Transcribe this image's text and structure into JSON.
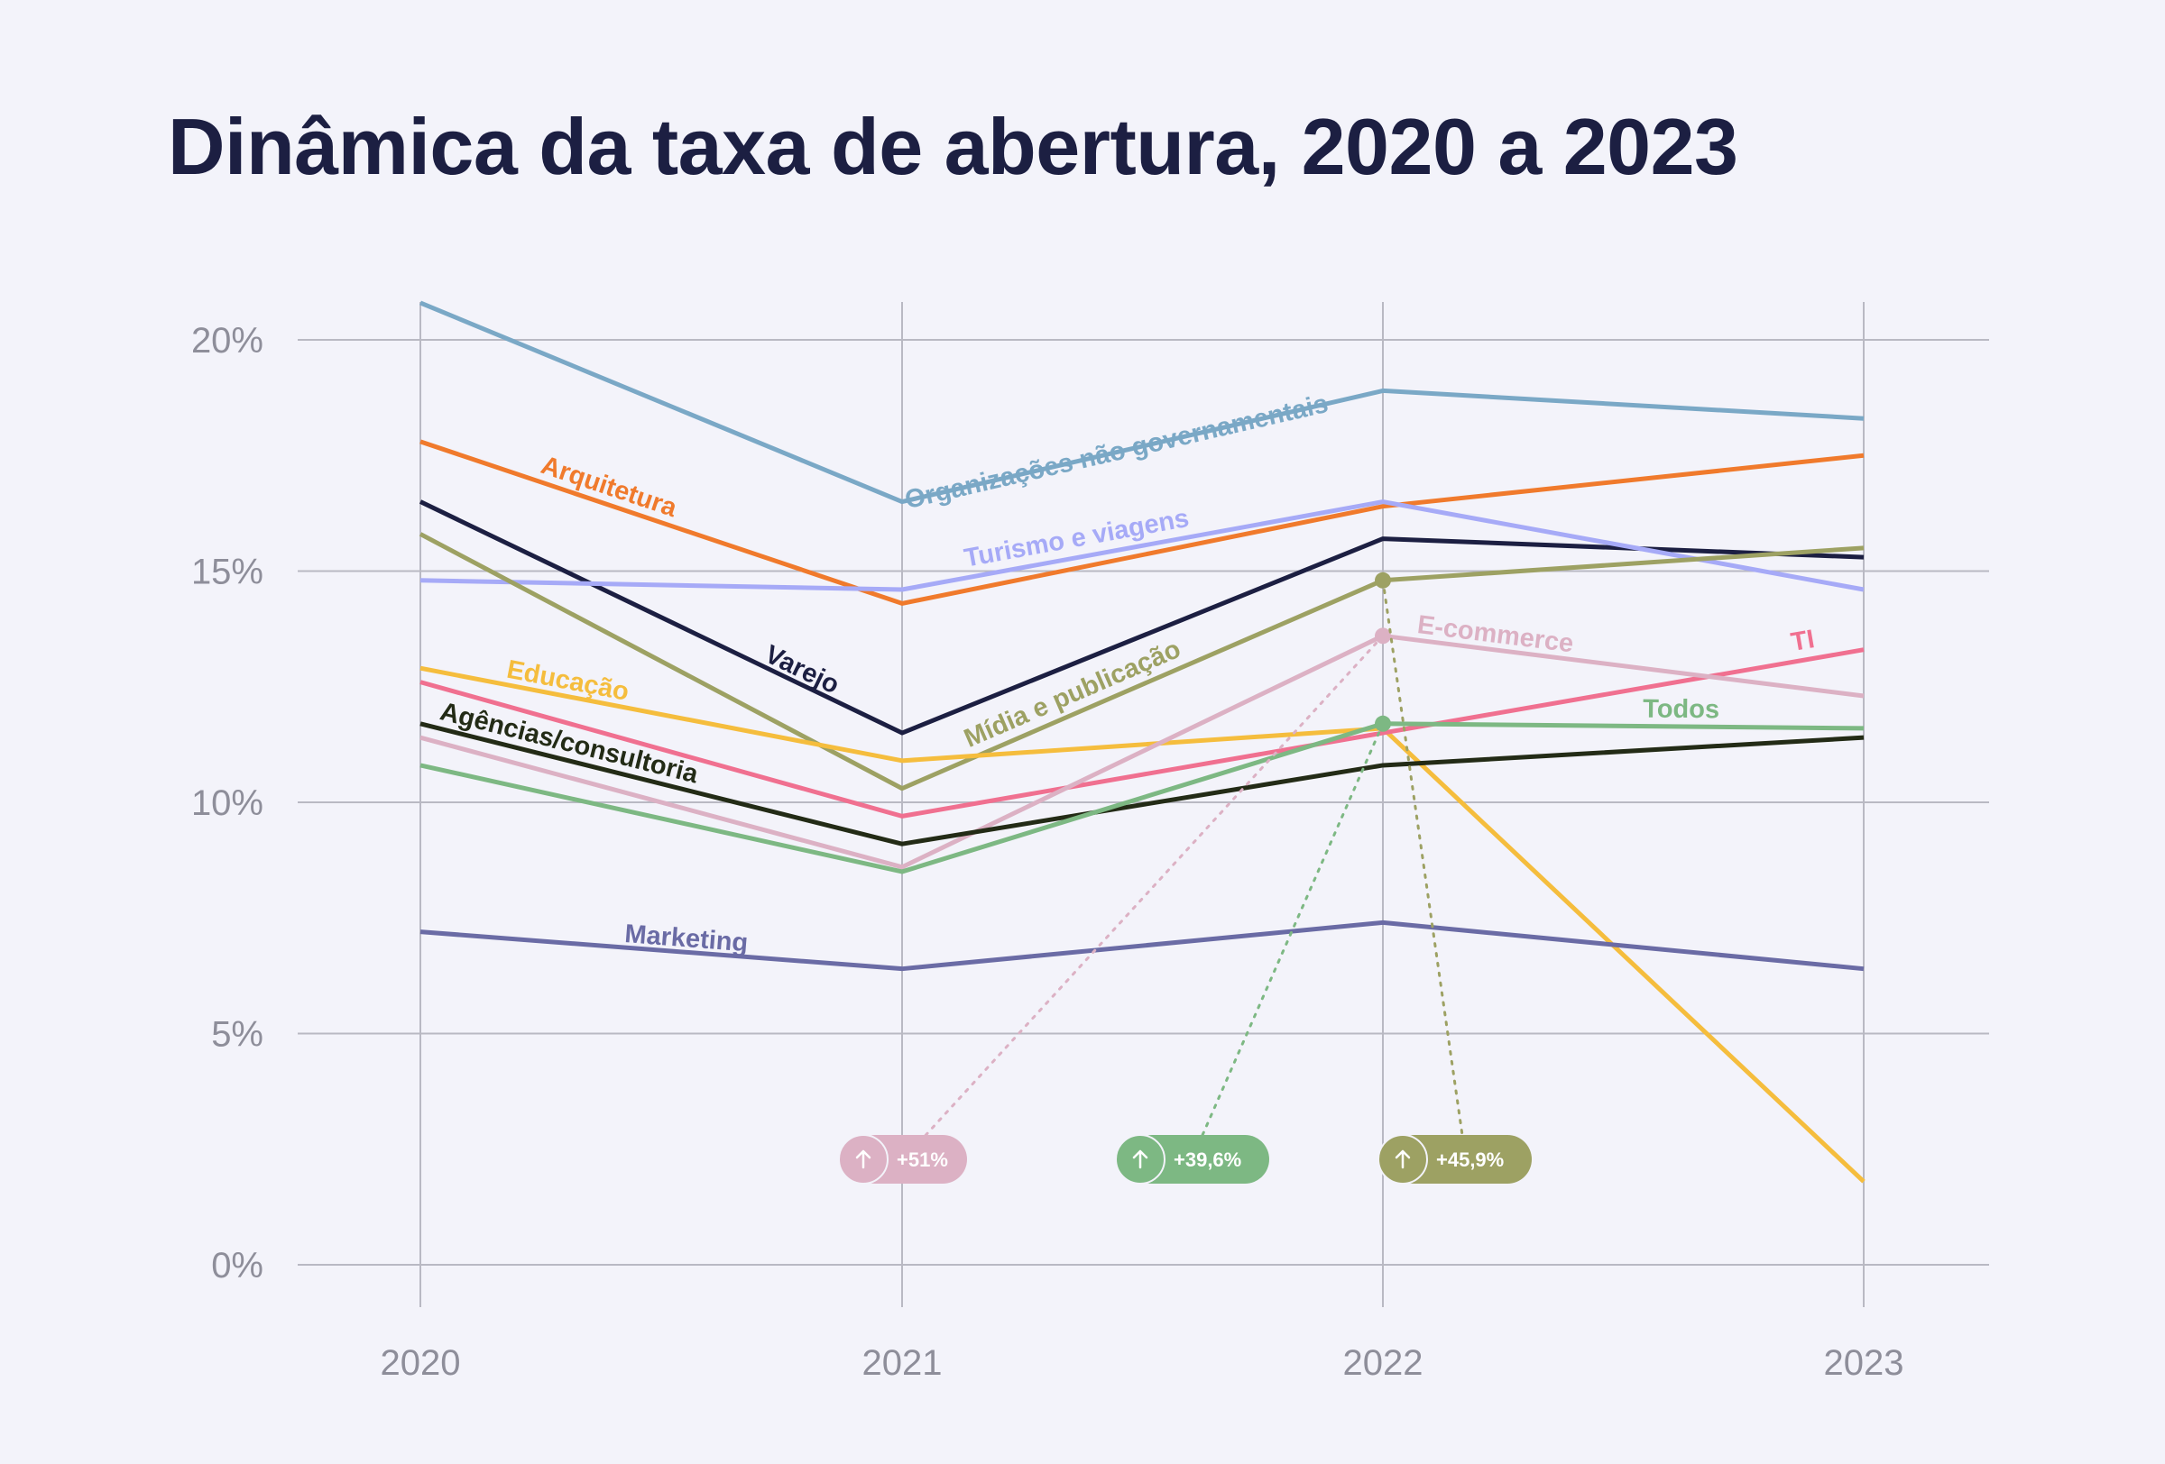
{
  "title": "Dinâmica da taxa de abertura, 2020 a 2023",
  "colors": {
    "background": "#f3f3fa",
    "title": "#1c1f42",
    "grid": "#b9b9c3",
    "ticks": "#8e8e9a"
  },
  "chart_data": {
    "type": "line",
    "title": "Dinâmica da taxa de abertura, 2020 a 2023",
    "xlabel": "",
    "ylabel": "",
    "x": [
      2020,
      2021,
      2022,
      2023
    ],
    "x_tick_labels": [
      "2020",
      "2021",
      "2022",
      "2023"
    ],
    "ylim": [
      0,
      20
    ],
    "y_ticks": [
      0,
      5,
      10,
      15,
      20
    ],
    "y_tick_labels": [
      "0%",
      "5%",
      "10%",
      "15%",
      "20%"
    ],
    "grid": true,
    "legend": "inline labels on lines",
    "series": [
      {
        "name": "Organizações não governamentais",
        "color": "#7aa8c6",
        "values": [
          20.8,
          16.5,
          18.9,
          18.3
        ]
      },
      {
        "name": "Arquitetura",
        "color": "#f07a2c",
        "values": [
          17.8,
          14.3,
          16.4,
          17.5
        ]
      },
      {
        "name": "Varejo",
        "color": "#1c1f42",
        "values": [
          16.5,
          11.5,
          15.7,
          15.3
        ]
      },
      {
        "name": "Turismo e viagens",
        "color": "#a6aaf7",
        "values": [
          14.8,
          14.6,
          16.5,
          14.6
        ]
      },
      {
        "name": "Mídia e publicação",
        "color": "#9da163",
        "values": [
          15.8,
          10.3,
          14.8,
          15.5
        ]
      },
      {
        "name": "Educação",
        "color": "#f5bd3d",
        "values": [
          12.9,
          10.9,
          11.6,
          1.8
        ]
      },
      {
        "name": "TI",
        "color": "#f07090",
        "values": [
          12.6,
          9.7,
          11.5,
          13.3
        ]
      },
      {
        "name": "E-commerce",
        "color": "#dcb1c4",
        "values": [
          11.4,
          8.6,
          13.6,
          12.3
        ]
      },
      {
        "name": "Agências/consultoria",
        "color": "#232b16",
        "values": [
          11.7,
          9.1,
          10.8,
          11.4
        ]
      },
      {
        "name": "Todos",
        "color": "#7db883",
        "values": [
          10.8,
          8.5,
          11.7,
          11.6
        ]
      },
      {
        "name": "Marketing",
        "color": "#6a6ba5",
        "values": [
          7.2,
          6.4,
          7.4,
          6.4
        ]
      }
    ],
    "annotations": [
      {
        "text": "+51%",
        "series": "E-commerce",
        "color": "#dcb1c4"
      },
      {
        "text": "+39,6%",
        "series": "Todos",
        "color": "#7db883"
      },
      {
        "text": "+45,9%",
        "series": "Mídia e publicação",
        "color": "#9da163"
      }
    ]
  }
}
